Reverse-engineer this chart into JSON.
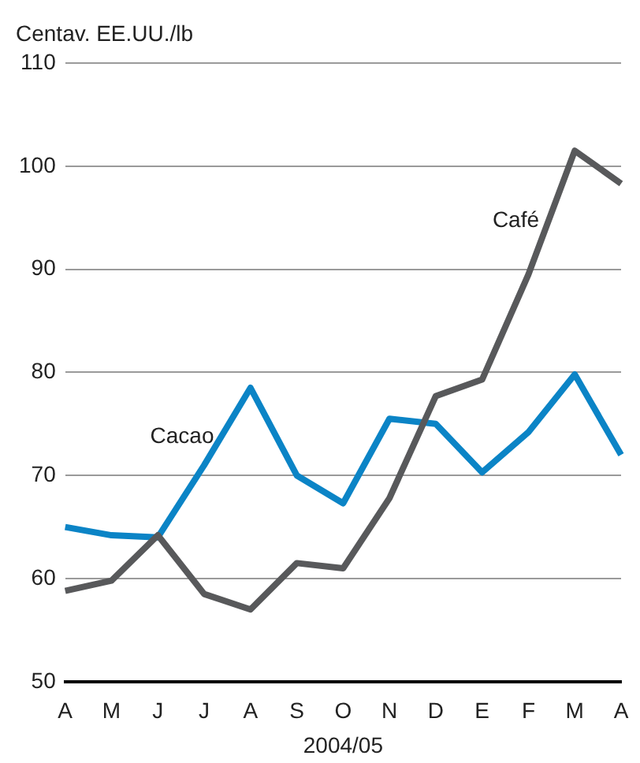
{
  "chart_data": {
    "type": "line",
    "ylabel": "Centav. EE.UU./lb",
    "xlabel": "2004/05",
    "categories": [
      "A",
      "M",
      "J",
      "J",
      "A",
      "S",
      "O",
      "N",
      "D",
      "E",
      "F",
      "M",
      "A"
    ],
    "series": [
      {
        "name": "Café",
        "color": "#58595b",
        "values": [
          58.8,
          59.8,
          64.2,
          58.5,
          57,
          61.5,
          61,
          67.8,
          77.7,
          79.3,
          89.5,
          101.5,
          98.3
        ]
      },
      {
        "name": "Cacao",
        "color": "#0b84c6",
        "values": [
          65,
          64.2,
          64,
          71,
          78.5,
          70,
          67.3,
          75.5,
          75,
          70.3,
          74.2,
          79.8,
          72
        ]
      }
    ],
    "ylim": [
      50,
      110
    ],
    "yticks": [
      50,
      60,
      70,
      80,
      90,
      100,
      110
    ],
    "grid": "y",
    "legend": false,
    "marker": "none",
    "line_style": "solid"
  }
}
